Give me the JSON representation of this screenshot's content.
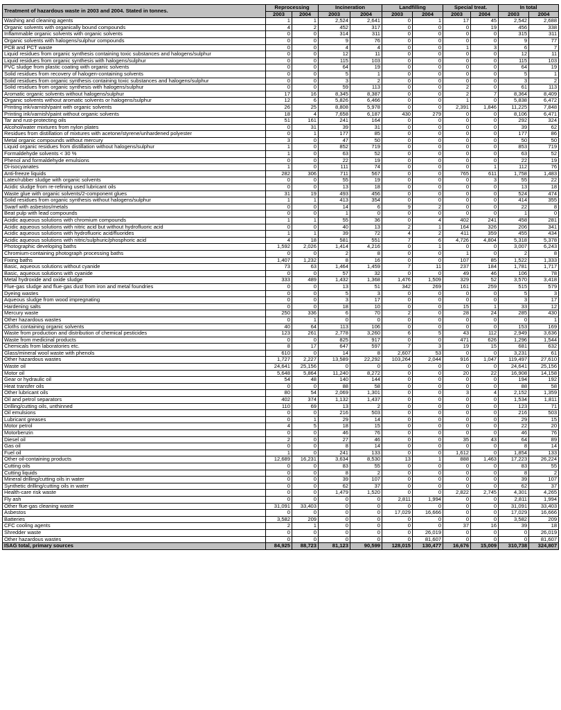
{
  "table": {
    "title": "Treatment of hazardous waste in 2003 and 2004. Stated in tonnes.",
    "groups": [
      "Reprocessing",
      "Incineration",
      "Landfilling",
      "Special treat.",
      "In total"
    ],
    "years": [
      "2003",
      "2004"
    ],
    "rows": [
      [
        "Washing and cleaning agents",
        "1",
        "1",
        "2,524",
        "2,641",
        "0",
        "1",
        "17",
        "45",
        "2,542",
        "2,688"
      ],
      [
        "Organic solvents with organically bound compounds",
        "4",
        "2",
        "452",
        "317",
        "0",
        "0",
        "0",
        "19",
        "456",
        "338"
      ],
      [
        "Inflammable organic solvents with organic solvents",
        "0",
        "0",
        "314",
        "311",
        "0",
        "0",
        "0",
        "0",
        "315",
        "311"
      ],
      [
        "Organic solvents with halogens/sulphur compounds",
        "0",
        "0",
        "9",
        "76",
        "0",
        "0",
        "0",
        "0",
        "9",
        "77"
      ],
      [
        "PCB and PCT waste",
        "0",
        "0",
        "4",
        "4",
        "0",
        "0",
        "1",
        "3",
        "6",
        "7"
      ],
      [
        "Liquid residues from organic synthesis containing toxic substances and halogens/sulphur",
        "0",
        "0",
        "12",
        "11",
        "0",
        "0",
        "0",
        "0",
        "12",
        "11"
      ],
      [
        "Liquid residues from organic synthesis with halogens/sulphur",
        "0",
        "0",
        "115",
        "103",
        "0",
        "0",
        "0",
        "0",
        "115",
        "103"
      ],
      [
        "PVC sludge from plastic coating with organic solvents",
        "0",
        "0",
        "64",
        "19",
        "0",
        "0",
        "0",
        "0",
        "64",
        "19"
      ],
      [
        "Solid residues from recovery of halogen-containing solvents",
        "0",
        "0",
        "5",
        "1",
        "0",
        "0",
        "0",
        "0",
        "5",
        "1"
      ],
      [
        "Solid residues from organic synthesis containing toxic substances and halogens/sulphur",
        "0",
        "0",
        "3",
        "2",
        "0",
        "0",
        "0",
        "0",
        "3",
        "2"
      ],
      [
        "Solid residues from organic synthesis with halogens/sulphur",
        "0",
        "0",
        "59",
        "113",
        "0",
        "0",
        "2",
        "0",
        "61",
        "113"
      ],
      [
        "Aromatic organic solvents without halogens/sulphur",
        "17",
        "16",
        "8,345",
        "8,387",
        "0",
        "0",
        "2",
        "7",
        "8,364",
        "8,409"
      ],
      [
        "Organic solvents without aromatic solvents or halogens/sulphur",
        "12",
        "6",
        "5,826",
        "6,466",
        "0",
        "0",
        "1",
        "0",
        "5,838",
        "6,472"
      ],
      [
        "Printing ink/varnish/paint with organic solvents",
        "26",
        "25",
        "8,808",
        "5,978",
        "0",
        "0",
        "2,391",
        "1,846",
        "11,225",
        "7,848"
      ],
      [
        "Printing ink/varnish/paint without organic solvents",
        "18",
        "4",
        "7,658",
        "6,187",
        "430",
        "279",
        "0",
        "0",
        "8,106",
        "6,471"
      ],
      [
        "Tar and rust-protecting oils",
        "51",
        "161",
        "241",
        "164",
        "0",
        "0",
        "0",
        "0",
        "292",
        "324"
      ],
      [
        "Alcohol/water mixtures from nylon plates",
        "0",
        "31",
        "39",
        "31",
        "0",
        "0",
        "0",
        "0",
        "39",
        "62"
      ],
      [
        "Residues from distillation of mixtures with acetone/styrene/unhardened polyester",
        "0",
        "1",
        "177",
        "85",
        "0",
        "0",
        "0",
        "0",
        "177",
        "86"
      ],
      [
        "Metal organic compounds without mercury",
        "3",
        "0",
        "47",
        "50",
        "0",
        "0",
        "0",
        "0",
        "50",
        "50"
      ],
      [
        "Liquid organic residues from distillation without halogens/sulphur",
        "1",
        "0",
        "852",
        "719",
        "0",
        "0",
        "0",
        "0",
        "853",
        "719"
      ],
      [
        "Formaldehyde solvents < 30 %",
        "1",
        "0",
        "63",
        "52",
        "0",
        "0",
        "0",
        "0",
        "63",
        "52"
      ],
      [
        "Phenol and formaldehyde emulsions",
        "0",
        "0",
        "22",
        "19",
        "0",
        "0",
        "0",
        "0",
        "22",
        "19"
      ],
      [
        "Di-isocyanates",
        "1",
        "0",
        "111",
        "74",
        "0",
        "0",
        "0",
        "1",
        "112",
        "76"
      ],
      [
        "Anti-freeze liquids",
        "282",
        "306",
        "711",
        "567",
        "0",
        "0",
        "765",
        "611",
        "1,758",
        "1,483"
      ],
      [
        "Latex/rubber sludge with organic solvents",
        "0",
        "0",
        "55",
        "19",
        "0",
        "0",
        "0",
        "3",
        "55",
        "22"
      ],
      [
        "Acidic sludge from re-refining used lubricant oils",
        "0",
        "0",
        "13",
        "18",
        "0",
        "0",
        "0",
        "0",
        "13",
        "18"
      ],
      [
        "Waste glue with organic solvents/2-component glues",
        "31",
        "19",
        "493",
        "456",
        "0",
        "0",
        "0",
        "0",
        "524",
        "474"
      ],
      [
        "Solid residues from organic synthesis without halogens/sulphur",
        "1",
        "1",
        "413",
        "354",
        "0",
        "0",
        "0",
        "0",
        "414",
        "355"
      ],
      [
        "Swarf with asbestos/metals",
        "0",
        "0",
        "14",
        "6",
        "9",
        "2",
        "0",
        "0",
        "22",
        "8"
      ],
      [
        "Beat pulp with lead compounds",
        "0",
        "0",
        "1",
        "0",
        "0",
        "0",
        "0",
        "0",
        "1",
        "0"
      ],
      [
        "Acidic aqueous solutions with chromium compounds",
        "1",
        "1",
        "55",
        "36",
        "0",
        "4",
        "402",
        "241",
        "458",
        "281"
      ],
      [
        "Acidic aqueous solutions with nitric acid but without hydrofluoric acid",
        "0",
        "0",
        "40",
        "13",
        "2",
        "1",
        "164",
        "326",
        "206",
        "341"
      ],
      [
        "Acidic aqueous solutions with hydrofluoric acid/fluorides",
        "1",
        "1",
        "39",
        "72",
        "4",
        "2",
        "411",
        "359",
        "455",
        "434"
      ],
      [
        "Acidic aqueous solutions with nitric/sulphuric/phosphoric acid",
        "4",
        "18",
        "581",
        "551",
        "7",
        "6",
        "4,726",
        "4,804",
        "5,318",
        "5,378"
      ],
      [
        "Photographic developing baths",
        "1,592",
        "2,026",
        "1,414",
        "4,216",
        "0",
        "1",
        "0",
        "0",
        "3,007",
        "6,243"
      ],
      [
        "Chromium-containing photograph processing baths",
        "0",
        "0",
        "2",
        "8",
        "0",
        "0",
        "1",
        "0",
        "2",
        "8"
      ],
      [
        "Fixing baths",
        "1,407",
        "1,232",
        "8",
        "16",
        "0",
        "0",
        "107",
        "85",
        "1,522",
        "1,333"
      ],
      [
        "Basic, aqueous solutions without cyanide",
        "73",
        "63",
        "1,464",
        "1,459",
        "7",
        "11",
        "237",
        "184",
        "1,781",
        "1,717"
      ],
      [
        "Basic, aqueous solutions with cyanide",
        "0",
        "0",
        "57",
        "32",
        "0",
        "0",
        "49",
        "46",
        "106",
        "78"
      ],
      [
        "Metal hydroxide and oxide sludge",
        "333",
        "489",
        "1,432",
        "1,368",
        "1,476",
        "1,509",
        "329",
        "52",
        "3,570",
        "3,418"
      ],
      [
        "Flue-gas sludge and flue-gas dust from iron and metal foundries",
        "0",
        "0",
        "13",
        "51",
        "342",
        "269",
        "161",
        "259",
        "515",
        "579"
      ],
      [
        "Dyeing wastes",
        "0",
        "0",
        "5",
        "3",
        "0",
        "0",
        "0",
        "0",
        "5",
        "3"
      ],
      [
        "Aqueous sludge from wood impregnating",
        "0",
        "0",
        "3",
        "17",
        "0",
        "0",
        "0",
        "0",
        "3",
        "17"
      ],
      [
        "Hardening salts",
        "0",
        "0",
        "18",
        "10",
        "0",
        "0",
        "15",
        "1",
        "33",
        "12"
      ],
      [
        "Mercury waste",
        "250",
        "336",
        "6",
        "70",
        "2",
        "0",
        "28",
        "24",
        "285",
        "430"
      ],
      [
        "Other hazardous wastes",
        "0",
        "1",
        "0",
        "0",
        "0",
        "0",
        "0",
        "0",
        "0",
        "1"
      ],
      [
        "Cloths containing organic solvents",
        "40",
        "64",
        "113",
        "106",
        "0",
        "0",
        "0",
        "0",
        "153",
        "169"
      ],
      [
        "Waste from production and distribution of chemical pesticides",
        "123",
        "261",
        "2,778",
        "3,260",
        "6",
        "5",
        "43",
        "112",
        "2,949",
        "3,636"
      ],
      [
        "Waste from medicinal products",
        "0",
        "0",
        "825",
        "917",
        "0",
        "0",
        "471",
        "626",
        "1,296",
        "1,544"
      ],
      [
        "Chemicals from laboratories etc.",
        "8",
        "17",
        "647",
        "597",
        "7",
        "3",
        "19",
        "15",
        "681",
        "632"
      ],
      [
        "Glass/mineral wool waste with phenols",
        "610",
        "0",
        "14",
        "8",
        "2,607",
        "53",
        "0",
        "0",
        "3,231",
        "61"
      ],
      [
        "Other hazardous wastes",
        "1,727",
        "2,227",
        "13,589",
        "22,292",
        "103,264",
        "2,044",
        "916",
        "1,047",
        "119,497",
        "27,610"
      ],
      [
        "Waste oil",
        "24,641",
        "25,156",
        "0",
        "0",
        "0",
        "0",
        "0",
        "0",
        "24,641",
        "25,156"
      ],
      [
        "Motor oil",
        "5,648",
        "5,864",
        "11,240",
        "8,272",
        "0",
        "0",
        "20",
        "22",
        "16,908",
        "14,158"
      ],
      [
        "Gear or hydraulic oil",
        "54",
        "48",
        "140",
        "144",
        "0",
        "0",
        "0",
        "0",
        "194",
        "192"
      ],
      [
        "Heat transfer oils",
        "0",
        "0",
        "88",
        "58",
        "0",
        "0",
        "0",
        "0",
        "88",
        "58"
      ],
      [
        "Other lubricant oils",
        "80",
        "54",
        "2,069",
        "1,301",
        "0",
        "0",
        "3",
        "4",
        "2,152",
        "1,359"
      ],
      [
        "Oil and petrol separators",
        "402",
        "374",
        "1,132",
        "1,437",
        "0",
        "0",
        "0",
        "0",
        "1,534",
        "1,811"
      ],
      [
        "Drilling/cutting oils, unthinned",
        "110",
        "69",
        "13",
        "2",
        "0",
        "0",
        "0",
        "0",
        "123",
        "71"
      ],
      [
        "Oil emulsions",
        "0",
        "0",
        "216",
        "503",
        "0",
        "0",
        "0",
        "0",
        "216",
        "503"
      ],
      [
        "Lubricant greases",
        "0",
        "1",
        "29",
        "14",
        "0",
        "0",
        "0",
        "0",
        "29",
        "15"
      ],
      [
        "Motor petrol",
        "4",
        "5",
        "18",
        "15",
        "0",
        "0",
        "0",
        "0",
        "22",
        "20"
      ],
      [
        "Motorbenzin",
        "0",
        "0",
        "46",
        "76",
        "0",
        "0",
        "0",
        "0",
        "46",
        "76"
      ],
      [
        "Diesel oil",
        "2",
        "0",
        "27",
        "46",
        "0",
        "0",
        "35",
        "43",
        "64",
        "89"
      ],
      [
        "Gas oil",
        "0",
        "0",
        "8",
        "14",
        "0",
        "0",
        "0",
        "0",
        "8",
        "14"
      ],
      [
        "Fuel oil",
        "1",
        "0",
        "241",
        "133",
        "0",
        "0",
        "1,612",
        "0",
        "1,854",
        "133"
      ],
      [
        "Other oil-containing products",
        "12,689",
        "16,231",
        "3,634",
        "8,530",
        "13",
        "1",
        "888",
        "1,463",
        "17,223",
        "26,224"
      ],
      [
        "Cutting oils",
        "0",
        "0",
        "83",
        "55",
        "0",
        "0",
        "0",
        "0",
        "83",
        "55"
      ],
      [
        "Cutting liquids",
        "0",
        "0",
        "8",
        "2",
        "0",
        "0",
        "0",
        "0",
        "8",
        "2"
      ],
      [
        "Mineral drilling/cutting oils in water",
        "0",
        "0",
        "39",
        "107",
        "0",
        "0",
        "0",
        "0",
        "39",
        "107"
      ],
      [
        "Synthetic drilling/cutting oils in water",
        "0",
        "0",
        "62",
        "37",
        "0",
        "0",
        "0",
        "0",
        "62",
        "37"
      ],
      [
        "Health-care risk waste",
        "0",
        "0",
        "1,479",
        "1,520",
        "0",
        "0",
        "2,822",
        "2,745",
        "4,301",
        "4,265"
      ],
      [
        "Fly ash",
        "0",
        "0",
        "0",
        "0",
        "2,811",
        "1,994",
        "0",
        "0",
        "2,811",
        "1,994"
      ],
      [
        "Other flue-gas cleaning waste",
        "31,091",
        "33,403",
        "0",
        "0",
        "0",
        "0",
        "0",
        "0",
        "31,091",
        "33,403"
      ],
      [
        "Asbestos",
        "0",
        "0",
        "0",
        "0",
        "17,029",
        "16,666",
        "0",
        "0",
        "17,029",
        "16,666"
      ],
      [
        "Batteries",
        "3,582",
        "209",
        "0",
        "0",
        "0",
        "0",
        "0",
        "0",
        "3,582",
        "209"
      ],
      [
        "CFC cooling agents",
        "2",
        "1",
        "0",
        "0",
        "0",
        "0",
        "37",
        "16",
        "39",
        "18"
      ],
      [
        "Shredder waste",
        "0",
        "0",
        "0",
        "0",
        "0",
        "26,019",
        "0",
        "0",
        "0",
        "26,019"
      ],
      [
        "Other hazardous wastes",
        "0",
        "0",
        "0",
        "0",
        "0",
        "81,607",
        "0",
        "0",
        "0",
        "81,607"
      ]
    ],
    "total": [
      "ISAG total, primary sources",
      "84,925",
      "88,723",
      "81,123",
      "90,599",
      "128,015",
      "130,477",
      "16,676",
      "15,009",
      "310,738",
      "324,807"
    ]
  }
}
